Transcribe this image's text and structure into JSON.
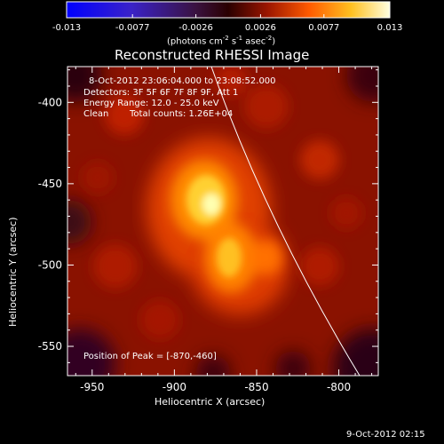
{
  "colorbar": {
    "tick_labels": [
      "-0.013",
      "-0.0077",
      "-0.0026",
      "0.0026",
      "0.0077",
      "0.013"
    ],
    "tick_values": [
      -0.013,
      -0.0077,
      -0.0026,
      0.0026,
      0.0077,
      0.013
    ],
    "range": [
      -0.013,
      0.013
    ],
    "unit_main": "(photons cm",
    "unit_exp1": "-2",
    "unit_mid": " s",
    "unit_exp2": "-1",
    "unit_mid2": " asec",
    "unit_exp3": "-2",
    "unit_end": ")"
  },
  "title": "Reconstructed RHESSI Image",
  "annotations": {
    "time_range": "8-Oct-2012 23:06:04.000 to 23:08:52.000",
    "detectors": "Detectors: 3F 5F 6F 7F 8F 9F, Att 1",
    "energy": "Energy Range: 12.0 - 25.0 keV",
    "clean_label": "Clean",
    "total_counts": "Total counts: 1.26E+04",
    "peak": "Position of Peak = [-870,-460]"
  },
  "axes": {
    "xlabel": "Heliocentric X (arcsec)",
    "ylabel": "Heliocentric Y (arcsec)",
    "x_ticks": [
      -950,
      -900,
      -850,
      -800
    ],
    "x_tick_labels": [
      "-950",
      "-900",
      "-850",
      "-800"
    ],
    "y_ticks": [
      -400,
      -450,
      -500,
      -550
    ],
    "y_tick_labels": [
      "-400",
      "-450",
      "-500",
      "-550"
    ],
    "xlim": [
      -965,
      -776
    ],
    "ylim": [
      -568,
      -378
    ]
  },
  "timestamp": "9-Oct-2012 02:15",
  "colors": {
    "background": "#000000",
    "limb_line": "#ffffff"
  }
}
